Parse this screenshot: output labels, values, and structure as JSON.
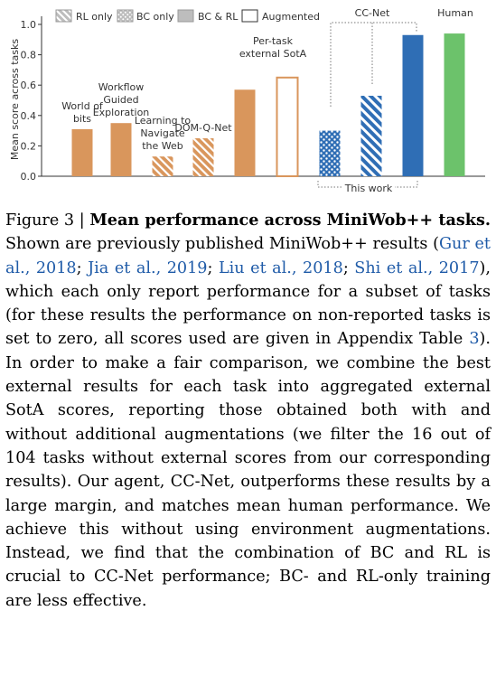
{
  "chart_data": {
    "type": "bar",
    "ylabel": "Mean score across tasks",
    "ylim": [
      0,
      1.05
    ],
    "yticks": [
      "0.0",
      "0.2",
      "0.4",
      "0.6",
      "0.8",
      "1.0"
    ],
    "legend": {
      "placement": "top",
      "entries": [
        {
          "label": "RL only",
          "style": "hatch"
        },
        {
          "label": "BC only",
          "style": "dots"
        },
        {
          "label": "BC & RL",
          "style": "solid"
        },
        {
          "label": "Augmented",
          "style": "outline"
        }
      ]
    },
    "bars": [
      {
        "value": 0.31,
        "group": "external",
        "fill": "solid",
        "color": "#d9965c",
        "label": "World of\nbits"
      },
      {
        "value": 0.35,
        "group": "external",
        "fill": "solid",
        "color": "#d9965c",
        "label": "Workflow\nGuided\nExploration"
      },
      {
        "value": 0.13,
        "group": "external",
        "fill": "hatch",
        "color": "#d9965c",
        "label": "Learning to\nNavigate\nthe Web"
      },
      {
        "value": 0.25,
        "group": "external",
        "fill": "hatch",
        "color": "#d9965c",
        "label": "DOM-Q-Net"
      },
      {
        "value": 0.57,
        "group": "external",
        "fill": "solid",
        "color": "#d9965c",
        "label": "Per-task\nexternal SotA"
      },
      {
        "value": 0.65,
        "group": "external",
        "fill": "outline",
        "color": "#d9965c",
        "label": ""
      },
      {
        "value": 0.3,
        "group": "ccnet",
        "fill": "dots",
        "color": "#2f6eb5",
        "label": ""
      },
      {
        "value": 0.53,
        "group": "ccnet",
        "fill": "hatch",
        "color": "#2f6eb5",
        "label": ""
      },
      {
        "value": 0.93,
        "group": "ccnet",
        "fill": "solid",
        "color": "#2f6eb5",
        "label": ""
      },
      {
        "value": 0.94,
        "group": "human",
        "fill": "solid",
        "color": "#6cc26b",
        "label": ""
      }
    ],
    "annotations": {
      "ccnet_label": "CC-Net",
      "human_label": "Human",
      "this_work": "This work"
    }
  },
  "caption": {
    "prefix": "Figure 3 | ",
    "title": "Mean performance across MiniWob++ tasks.",
    "text_1": " Shown are previously published MiniWob++ results (",
    "cite_1": "Gur et al., 2018",
    "sep_1": "; ",
    "cite_2": "Jia et al., 2019",
    "sep_2": "; ",
    "cite_3": "Liu et al., 2018",
    "sep_3": "; ",
    "cite_4": "Shi et al., 2017",
    "text_2": "), which each only report performance for a subset of tasks (for these results the performance on non-reported tasks is set to zero, all scores used are given in Appendix Table ",
    "table_ref": "3",
    "text_3": "). In order to make a fair comparison, we combine the best external results for each task into aggregated external SotA scores, reporting those obtained both with and without additional augmentations (we filter the 16 out of 104 tasks without external scores from our corresponding results). Our agent, CC-Net, outperforms these results by a large margin, and matches mean human performance. We achieve this without using environment augmentations. Instead, we find that the combination of BC and RL is crucial to CC-Net performance; BC- and RL-only training are less effective."
  }
}
